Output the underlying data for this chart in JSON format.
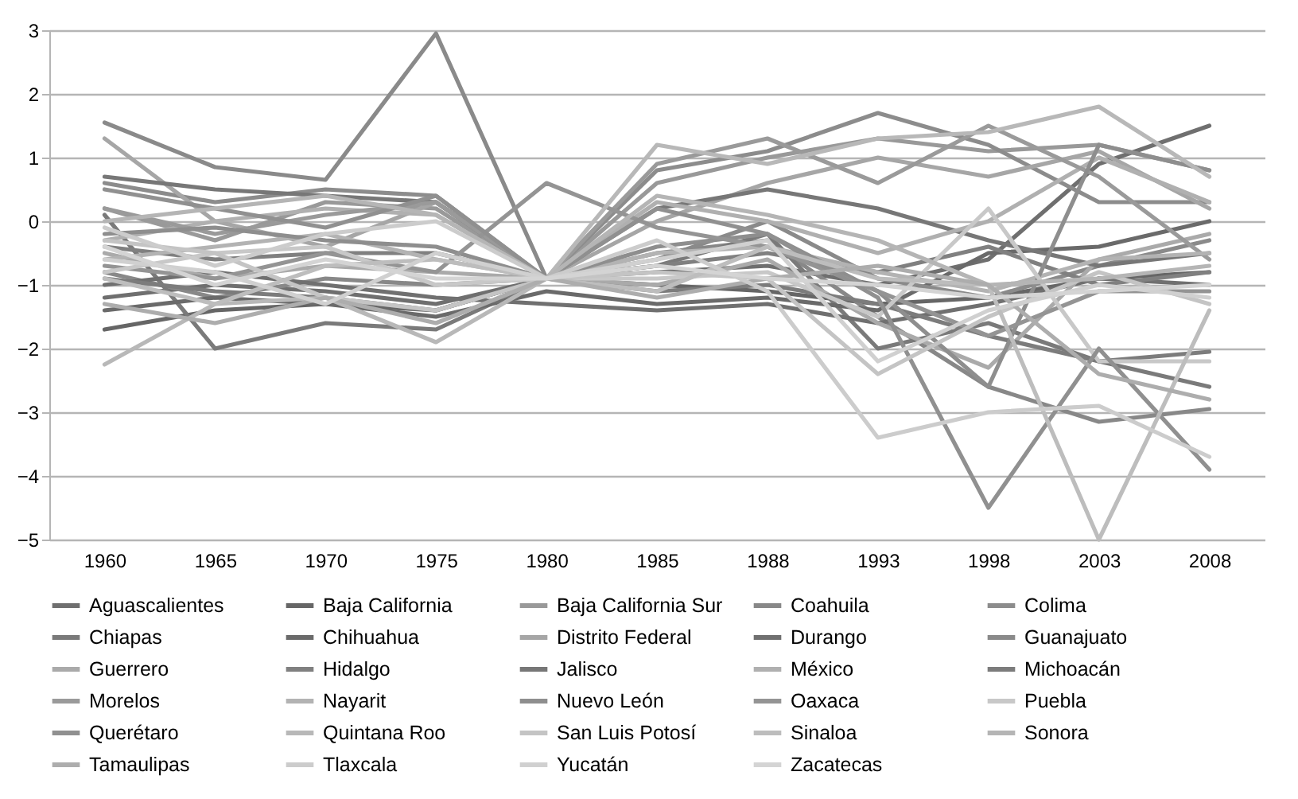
{
  "chart_data": {
    "type": "line",
    "categories": [
      "1960",
      "1965",
      "1970",
      "1975",
      "1980",
      "1985",
      "1988",
      "1993",
      "1998",
      "2003",
      "2008"
    ],
    "ylim": [
      -5,
      3
    ],
    "yticks": [
      -5,
      -4,
      -3,
      -2,
      -1,
      0,
      1,
      2,
      3
    ],
    "grid": "y",
    "legend": "bottom",
    "series": [
      {
        "name": "Aguascalientes",
        "color": "#6f6f6f",
        "values": [
          -1.2,
          -1.0,
          -1.1,
          -1.3,
          -0.9,
          -0.8,
          -0.7,
          -1.0,
          -0.6,
          0.9,
          1.5
        ]
      },
      {
        "name": "Baja California",
        "color": "#666666",
        "values": [
          -1.7,
          -1.4,
          -1.3,
          -1.4,
          -0.9,
          -1.0,
          -1.1,
          -1.3,
          -1.2,
          -0.9,
          -0.8
        ]
      },
      {
        "name": "Baja California Sur",
        "color": "#999999",
        "values": [
          0.2,
          -0.3,
          0.3,
          0.2,
          -0.9,
          0.6,
          1.0,
          1.3,
          1.1,
          1.2,
          0.8
        ]
      },
      {
        "name": "Coahuila",
        "color": "#888888",
        "values": [
          -0.8,
          -1.2,
          -0.9,
          -1.0,
          -0.9,
          -0.5,
          -0.3,
          -1.5,
          -2.6,
          -3.15,
          -2.95
        ]
      },
      {
        "name": "Colima",
        "color": "#8c8c8c",
        "values": [
          0.6,
          0.3,
          0.5,
          0.4,
          -0.9,
          0.8,
          1.1,
          1.7,
          1.2,
          0.3,
          0.3
        ]
      },
      {
        "name": "Chiapas",
        "color": "#7a7a7a",
        "values": [
          0.1,
          -2.0,
          -1.6,
          -1.7,
          -0.9,
          -0.7,
          -0.2,
          -2.0,
          -1.6,
          -2.2,
          -2.6
        ]
      },
      {
        "name": "Chihuahua",
        "color": "#6a6a6a",
        "values": [
          -1.4,
          -1.2,
          -1.3,
          -1.5,
          -1.1,
          -1.3,
          -1.2,
          -1.4,
          -0.5,
          -0.4,
          0.0
        ]
      },
      {
        "name": "Distrito Federal",
        "color": "#a6a6a6",
        "values": [
          1.3,
          0.0,
          -0.4,
          0.3,
          -0.9,
          0.0,
          0.6,
          1.0,
          0.7,
          1.1,
          0.2
        ]
      },
      {
        "name": "Durango",
        "color": "#707070",
        "values": [
          -1.0,
          -0.8,
          -1.0,
          -1.2,
          -1.3,
          -1.4,
          -1.3,
          -1.6,
          -1.3,
          -0.9,
          -1.0
        ]
      },
      {
        "name": "Guanajuato",
        "color": "#8a8a8a",
        "values": [
          1.55,
          0.85,
          0.65,
          2.95,
          -0.9,
          -0.6,
          0.0,
          -0.9,
          -1.2,
          -0.7,
          -0.3
        ]
      },
      {
        "name": "Guerrero",
        "color": "#aaaaaa",
        "values": [
          -0.5,
          -0.9,
          -0.7,
          -0.8,
          -0.9,
          -1.0,
          -0.6,
          -1.6,
          -2.3,
          -0.6,
          -0.2
        ]
      },
      {
        "name": "Hidalgo",
        "color": "#808080",
        "values": [
          -0.4,
          -0.6,
          -0.5,
          -0.5,
          -0.9,
          -0.7,
          -0.5,
          -0.8,
          -0.4,
          -1.0,
          -0.8
        ]
      },
      {
        "name": "Jalisco",
        "color": "#777777",
        "values": [
          0.7,
          0.5,
          0.4,
          0.3,
          -0.9,
          0.2,
          0.5,
          0.2,
          -0.3,
          -0.7,
          -0.5
        ]
      },
      {
        "name": "México",
        "color": "#b0b0b0",
        "values": [
          -0.3,
          0.0,
          0.2,
          0.1,
          -0.9,
          0.3,
          0.0,
          -0.5,
          0.0,
          1.0,
          0.3
        ]
      },
      {
        "name": "Michoacán",
        "color": "#7c7c7c",
        "values": [
          -0.9,
          -1.1,
          -1.2,
          -1.4,
          -0.9,
          -1.1,
          -1.0,
          -1.3,
          -1.8,
          -2.2,
          -2.05
        ]
      },
      {
        "name": "Morelos",
        "color": "#9a9a9a",
        "values": [
          0.2,
          -0.2,
          0.1,
          0.3,
          -0.9,
          0.9,
          1.3,
          0.6,
          1.5,
          0.7,
          -0.6
        ]
      },
      {
        "name": "Nayarit",
        "color": "#b3b3b3",
        "values": [
          -0.6,
          -0.4,
          -0.2,
          -0.6,
          -0.9,
          -0.5,
          -0.4,
          -0.8,
          -1.1,
          -0.6,
          -0.5
        ]
      },
      {
        "name": "Nuevo León",
        "color": "#8e8e8e",
        "values": [
          -0.2,
          -0.1,
          -0.3,
          -0.4,
          -0.9,
          -0.4,
          -0.2,
          -1.1,
          -2.6,
          1.2,
          0.8
        ]
      },
      {
        "name": "Oaxaca",
        "color": "#949494",
        "values": [
          -0.7,
          -0.9,
          -0.5,
          -0.8,
          0.6,
          -0.1,
          -0.4,
          -1.1,
          -1.8,
          -1.1,
          -1.1
        ]
      },
      {
        "name": "Puebla",
        "color": "#c8c8c8",
        "values": [
          -0.8,
          -0.5,
          -0.4,
          -1.0,
          -0.9,
          -0.9,
          -0.8,
          -1.5,
          0.2,
          -2.2,
          -2.2
        ]
      },
      {
        "name": "Querétaro",
        "color": "#909090",
        "values": [
          0.5,
          0.2,
          -0.1,
          0.4,
          -0.9,
          0.2,
          -0.2,
          -1.2,
          -4.5,
          -2.0,
          -3.9
        ]
      },
      {
        "name": "Quintana Roo",
        "color": "#b8b8b8",
        "values": [
          -2.25,
          -1.3,
          -1.2,
          -1.9,
          -0.9,
          1.2,
          0.9,
          1.3,
          1.4,
          1.8,
          0.7
        ]
      },
      {
        "name": "San Luis Potosí",
        "color": "#c4c4c4",
        "values": [
          -0.3,
          -0.5,
          -1.2,
          -1.4,
          -0.9,
          -0.8,
          -0.9,
          -2.4,
          -1.5,
          -0.8,
          -1.3
        ]
      },
      {
        "name": "Sinaloa",
        "color": "#bdbdbd",
        "values": [
          -0.9,
          -1.3,
          -0.7,
          -0.6,
          -0.9,
          -1.1,
          -0.4,
          -0.9,
          -1.0,
          -5.0,
          -1.4
        ]
      },
      {
        "name": "Sonora",
        "color": "#b5b5b5",
        "values": [
          0.0,
          0.2,
          0.4,
          0.1,
          -0.9,
          0.4,
          0.1,
          -0.3,
          -1.0,
          -0.9,
          -0.7
        ]
      },
      {
        "name": "Tamaulipas",
        "color": "#adadad",
        "values": [
          -1.3,
          -1.6,
          -1.2,
          -1.6,
          -0.9,
          -1.2,
          -0.9,
          -0.7,
          -1.0,
          -2.4,
          -2.8
        ]
      },
      {
        "name": "Tlaxcala",
        "color": "#cccccc",
        "values": [
          -0.1,
          -0.7,
          -0.2,
          0.0,
          -0.9,
          -0.3,
          -1.1,
          -3.4,
          -3.0,
          -2.9,
          -3.7
        ]
      },
      {
        "name": "Yucatán",
        "color": "#d0d0d0",
        "values": [
          -0.6,
          -0.8,
          -1.3,
          -0.5,
          -0.9,
          -0.6,
          -0.3,
          -2.2,
          -1.4,
          -1.0,
          -1.2
        ]
      },
      {
        "name": "Zacatecas",
        "color": "#d4d4d4",
        "values": [
          -0.4,
          -1.0,
          -0.6,
          -0.9,
          -0.9,
          -0.7,
          -0.9,
          -1.0,
          -1.2,
          -1.1,
          -1.0
        ]
      }
    ]
  }
}
